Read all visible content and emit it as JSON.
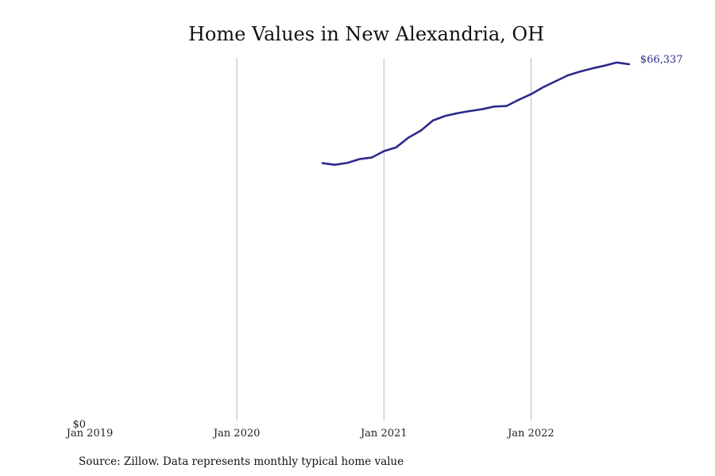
{
  "chart_data": {
    "type": "line",
    "title": "Home Values in New Alexandria, OH",
    "xlabel": "",
    "ylabel": "",
    "x_ticks": [
      {
        "label": "Jan 2019",
        "value": 2019.0
      },
      {
        "label": "Jan 2020",
        "value": 2020.0
      },
      {
        "label": "Jan 2021",
        "value": 2021.0
      },
      {
        "label": "Jan 2022",
        "value": 2022.0
      }
    ],
    "y_ticks": [
      {
        "label": "$0",
        "value": 0
      }
    ],
    "xlim": [
      2019.0,
      2022.9
    ],
    "ylim": [
      0,
      67500
    ],
    "grid": "vertical",
    "series": [
      {
        "color": "#2e2a8c",
        "end_label": "$66,337",
        "x": [
          "2020-08",
          "2020-09",
          "2020-10",
          "2020-11",
          "2020-12",
          "2021-01",
          "2021-02",
          "2021-03",
          "2021-04",
          "2021-05",
          "2021-06",
          "2021-07",
          "2021-08",
          "2021-09",
          "2021-10",
          "2021-11",
          "2021-12",
          "2022-01",
          "2022-02",
          "2022-03",
          "2022-04",
          "2022-05",
          "2022-06",
          "2022-07",
          "2022-08",
          "2022-09"
        ],
        "values": [
          47900,
          47600,
          47950,
          48650,
          48950,
          50150,
          50850,
          52650,
          53950,
          55850,
          56700,
          57200,
          57600,
          57950,
          58450,
          58550,
          59700,
          60750,
          62050,
          63150,
          64250,
          64950,
          65550,
          66050,
          66650,
          66337
        ]
      }
    ]
  },
  "footer": {
    "source": "Source: Zillow. Data represents monthly typical home value"
  }
}
